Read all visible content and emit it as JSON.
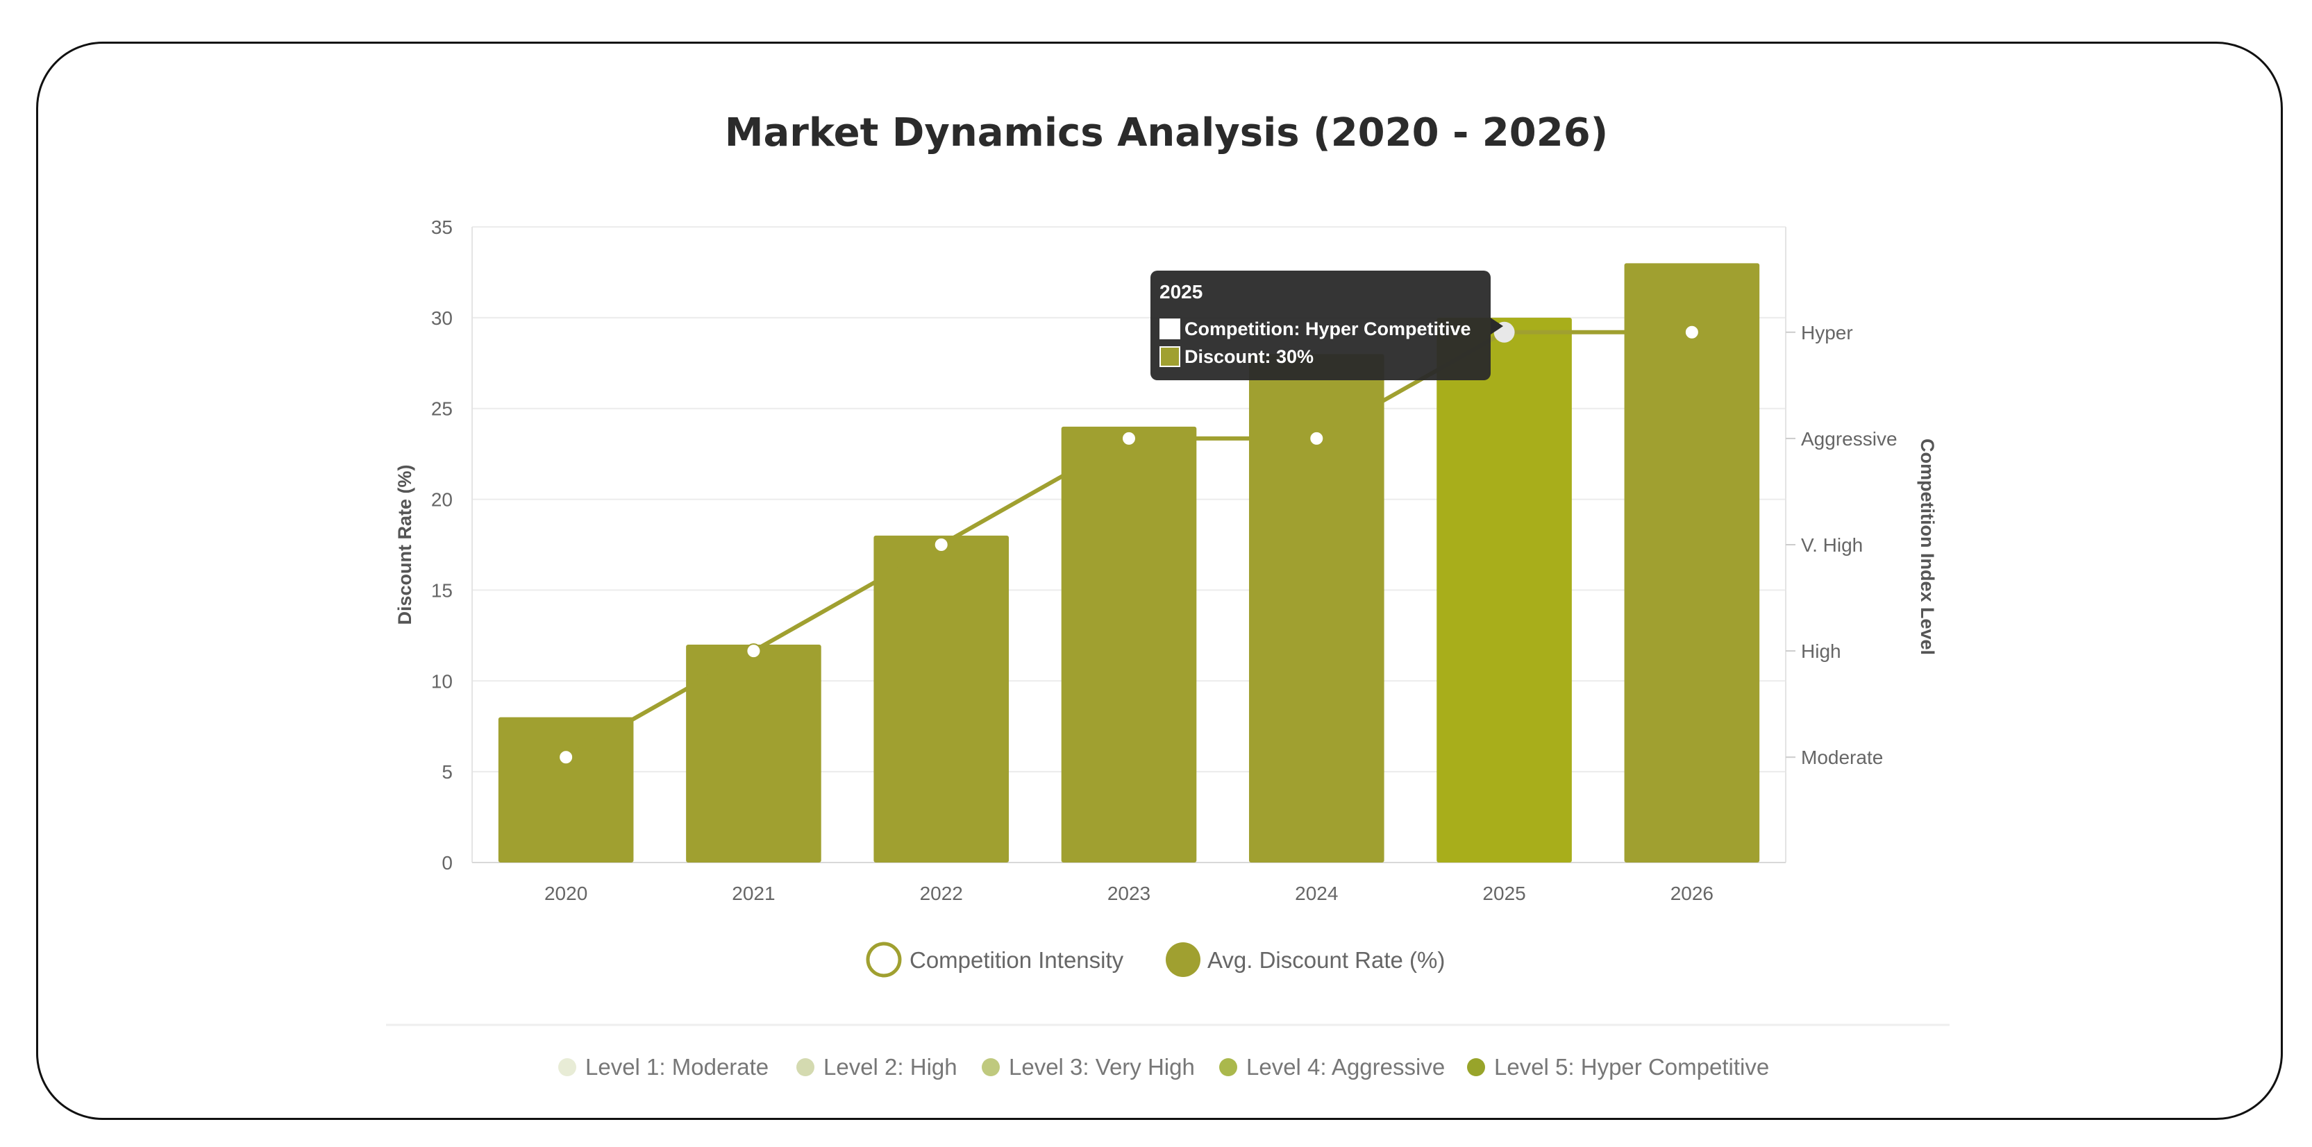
{
  "chart_data": {
    "type": "bar",
    "title": "Market Dynamics Analysis (2020 - 2026)",
    "categories": [
      "2020",
      "2021",
      "2022",
      "2023",
      "2024",
      "2025",
      "2026"
    ],
    "ylabel": "Discount Rate (%)",
    "ylim": [
      0,
      35
    ],
    "yticks": [
      0,
      5,
      10,
      15,
      20,
      25,
      30,
      35
    ],
    "y2label": "Competition Index Level",
    "y2ticks": [
      "Moderate",
      "High",
      "V. High",
      "Aggressive",
      "Hyper"
    ],
    "grid": true,
    "series": [
      {
        "name": "Avg. Discount Rate (%)",
        "type": "bar",
        "axis": "left",
        "values": [
          8,
          12,
          18,
          24,
          28,
          30,
          33
        ],
        "color": "#a0a030",
        "highlight_color": "#a8ae1b"
      },
      {
        "name": "Competition Intensity",
        "type": "line",
        "axis": "right",
        "values": [
          1,
          2,
          3,
          4,
          4,
          5,
          5
        ],
        "color": "#a0a030"
      }
    ],
    "legend": [
      "Competition Intensity",
      "Avg. Discount Rate (%)"
    ],
    "legend_position": "bottom",
    "tooltip": {
      "title": "2025",
      "line1": "Competition: Hyper Competitive",
      "line2": "Discount: 30%"
    },
    "levels": [
      {
        "label": "Level 1: Moderate",
        "color": "#e8ecd6"
      },
      {
        "label": "Level 2: High",
        "color": "#d4dab0"
      },
      {
        "label": "Level 3: Very High",
        "color": "#bfc97e"
      },
      {
        "label": "Level 4: Aggressive",
        "color": "#aab84c"
      },
      {
        "label": "Level 5: Hyper Competitive",
        "color": "#98a42a"
      }
    ]
  }
}
